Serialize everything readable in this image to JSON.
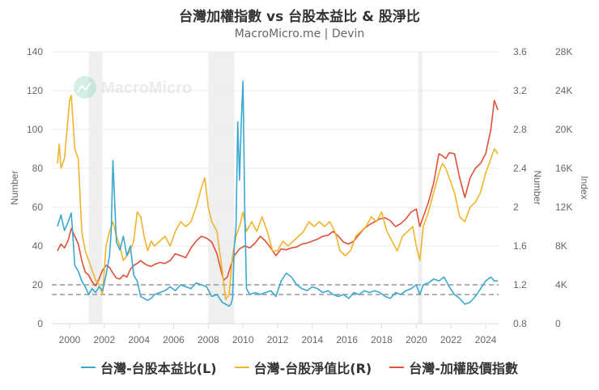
{
  "header": {
    "title": "台灣加權指數 vs 台股本益比 & 股淨比",
    "subtitle": "MacroMicro.me | Devin"
  },
  "watermark": {
    "text": "MacroMicro",
    "icon": "chart-logo-icon"
  },
  "legend": [
    {
      "label": "台灣-台股本益比(L)",
      "color": "#3BA8D0"
    },
    {
      "label": "台灣-台股淨值比(R)",
      "color": "#F0B42D"
    },
    {
      "label": "台灣-加權股價指數",
      "color": "#E0513A"
    }
  ],
  "chart_data": {
    "type": "line",
    "title": "台灣加權指數 vs 台股本益比 & 股淨比",
    "subtitle": "MacroMicro.me | Devin",
    "xlabel": "",
    "x_ticks": [
      "2000",
      "2002",
      "2004",
      "2006",
      "2008",
      "2010",
      "2012",
      "2014",
      "2016",
      "2018",
      "2020",
      "2022",
      "2024"
    ],
    "xlim": [
      1999.3,
      2025.0
    ],
    "axes": {
      "left": {
        "label": "Number",
        "ticks": [
          "0",
          "20",
          "40",
          "60",
          "80",
          "100",
          "120",
          "140"
        ],
        "ylim": [
          0,
          140
        ]
      },
      "right1": {
        "label": "Number",
        "ticks": [
          "0.8",
          "1.2",
          "1.6",
          "2",
          "2.4",
          "2.8",
          "3.2",
          "3.6"
        ],
        "ylim": [
          0.8,
          3.6
        ]
      },
      "right2": {
        "label": "Index",
        "ticks": [
          "0",
          "4K",
          "8K",
          "12K",
          "16K",
          "20K",
          "24K",
          "28K"
        ],
        "ylim": [
          0,
          28000
        ]
      }
    },
    "reference_lines": [
      {
        "axis": "left",
        "value": 20,
        "style": "dashed",
        "color": "#999999"
      },
      {
        "axis": "left",
        "value": 15,
        "style": "dashed",
        "color": "#999999"
      }
    ],
    "shaded_periods": [
      {
        "from": 2001.1,
        "to": 2001.9
      },
      {
        "from": 2008.0,
        "to": 2009.5
      },
      {
        "from": 2020.1,
        "to": 2020.35
      }
    ],
    "grid": true,
    "legend_position": "bottom",
    "series": [
      {
        "name": "台灣-台股本益比(L)",
        "axis": "left",
        "color": "#3BA8D0",
        "x": [
          1999.3,
          1999.5,
          1999.7,
          1999.9,
          2000.1,
          2000.3,
          2000.5,
          2000.7,
          2000.9,
          2001.1,
          2001.3,
          2001.5,
          2001.7,
          2001.9,
          2002.1,
          2002.3,
          2002.4,
          2002.5,
          2002.7,
          2002.9,
          2003.1,
          2003.3,
          2003.5,
          2003.7,
          2003.9,
          2004.1,
          2004.3,
          2004.5,
          2004.7,
          2004.9,
          2005.2,
          2005.5,
          2005.8,
          2006.1,
          2006.4,
          2006.7,
          2007.0,
          2007.3,
          2007.6,
          2007.9,
          2008.2,
          2008.5,
          2008.8,
          2009.0,
          2009.2,
          2009.3,
          2009.4,
          2009.5,
          2009.6,
          2009.7,
          2009.8,
          2009.9,
          2010.0,
          2010.1,
          2010.2,
          2010.4,
          2010.7,
          2011.0,
          2011.3,
          2011.6,
          2011.9,
          2012.2,
          2012.5,
          2012.8,
          2013.1,
          2013.4,
          2013.7,
          2014.0,
          2014.3,
          2014.6,
          2014.9,
          2015.2,
          2015.5,
          2015.8,
          2016.1,
          2016.4,
          2016.7,
          2017.0,
          2017.3,
          2017.6,
          2017.9,
          2018.2,
          2018.5,
          2018.8,
          2019.1,
          2019.4,
          2019.7,
          2020.0,
          2020.2,
          2020.4,
          2020.7,
          2021.0,
          2021.3,
          2021.6,
          2021.9,
          2022.2,
          2022.5,
          2022.8,
          2023.1,
          2023.4,
          2023.7,
          2024.0,
          2024.3,
          2024.5,
          2024.7
        ],
        "values": [
          50,
          56,
          48,
          52,
          57,
          30,
          27,
          22,
          19,
          15,
          18,
          16,
          19,
          17,
          25,
          35,
          48,
          84,
          42,
          38,
          45,
          35,
          40,
          25,
          22,
          14,
          13,
          12,
          13,
          15,
          16,
          17,
          19,
          17,
          20,
          19,
          18,
          21,
          20,
          19,
          14,
          15,
          11,
          10,
          9,
          10,
          13,
          40,
          50,
          104,
          74,
          103,
          125,
          60,
          18,
          15,
          16,
          15,
          16,
          17,
          14,
          22,
          26,
          24,
          20,
          18,
          17,
          19,
          18,
          16,
          17,
          15,
          14,
          15,
          13,
          16,
          15,
          17,
          16,
          17,
          16,
          14,
          13,
          16,
          15,
          17,
          18,
          20,
          15,
          20,
          21,
          23,
          22,
          24,
          19,
          15,
          13,
          10,
          11,
          14,
          18,
          22,
          24,
          22,
          22
        ]
      },
      {
        "name": "台灣-台股淨值比(R)",
        "axis": "right1",
        "color": "#F0B42D",
        "x": [
          1999.3,
          1999.4,
          1999.5,
          1999.7,
          1999.9,
          2000.0,
          2000.1,
          2000.3,
          2000.5,
          2000.7,
          2000.9,
          2001.1,
          2001.3,
          2001.5,
          2001.7,
          2001.9,
          2002.1,
          2002.3,
          2002.5,
          2002.7,
          2002.9,
          2003.1,
          2003.3,
          2003.5,
          2003.7,
          2003.9,
          2004.1,
          2004.3,
          2004.5,
          2004.7,
          2004.9,
          2005.2,
          2005.5,
          2005.8,
          2006.1,
          2006.4,
          2006.7,
          2007.0,
          2007.3,
          2007.6,
          2007.8,
          2008.0,
          2008.2,
          2008.5,
          2008.8,
          2008.9,
          2009.0,
          2009.2,
          2009.4,
          2009.6,
          2009.8,
          2010.0,
          2010.2,
          2010.5,
          2010.8,
          2011.1,
          2011.4,
          2011.7,
          2012.0,
          2012.3,
          2012.6,
          2012.9,
          2013.2,
          2013.5,
          2013.8,
          2014.1,
          2014.4,
          2014.7,
          2015.0,
          2015.3,
          2015.6,
          2015.9,
          2016.2,
          2016.5,
          2016.8,
          2017.1,
          2017.4,
          2017.7,
          2018.0,
          2018.3,
          2018.6,
          2018.9,
          2019.2,
          2019.5,
          2019.8,
          2020.0,
          2020.2,
          2020.4,
          2020.7,
          2021.0,
          2021.3,
          2021.5,
          2021.7,
          2021.9,
          2022.2,
          2022.5,
          2022.8,
          2023.1,
          2023.4,
          2023.7,
          2024.0,
          2024.3,
          2024.5,
          2024.7
        ],
        "values": [
          2.45,
          2.65,
          2.4,
          2.5,
          2.9,
          3.1,
          3.15,
          2.6,
          2.5,
          1.75,
          1.55,
          1.45,
          1.35,
          1.25,
          1.2,
          1.1,
          1.6,
          1.75,
          1.85,
          1.7,
          1.6,
          1.45,
          1.5,
          1.55,
          1.65,
          1.95,
          1.9,
          1.7,
          1.55,
          1.65,
          1.6,
          1.65,
          1.7,
          1.6,
          1.75,
          1.85,
          1.8,
          1.85,
          2.0,
          2.2,
          2.3,
          2.0,
          1.85,
          1.75,
          1.35,
          1.2,
          1.05,
          1.1,
          1.5,
          1.7,
          1.8,
          1.95,
          1.75,
          1.85,
          1.75,
          1.9,
          1.75,
          1.55,
          1.55,
          1.65,
          1.6,
          1.65,
          1.7,
          1.75,
          1.85,
          1.8,
          1.85,
          1.8,
          1.85,
          1.75,
          1.55,
          1.5,
          1.55,
          1.7,
          1.75,
          1.8,
          1.9,
          1.85,
          1.95,
          1.75,
          1.65,
          1.55,
          1.7,
          1.75,
          1.8,
          1.6,
          1.45,
          1.8,
          1.95,
          2.15,
          2.35,
          2.45,
          2.4,
          2.3,
          2.15,
          1.9,
          1.85,
          2.0,
          2.05,
          2.15,
          2.35,
          2.5,
          2.6,
          2.55
        ]
      },
      {
        "name": "台灣-加權股價指數",
        "axis": "right2",
        "color": "#E0513A",
        "x": [
          1999.3,
          1999.5,
          1999.7,
          1999.9,
          2000.1,
          2000.3,
          2000.5,
          2000.7,
          2000.9,
          2001.1,
          2001.3,
          2001.5,
          2001.7,
          2001.9,
          2002.1,
          2002.3,
          2002.5,
          2002.7,
          2002.9,
          2003.1,
          2003.3,
          2003.5,
          2003.7,
          2003.9,
          2004.1,
          2004.3,
          2004.5,
          2004.7,
          2004.9,
          2005.2,
          2005.5,
          2005.8,
          2006.1,
          2006.4,
          2006.7,
          2007.0,
          2007.3,
          2007.6,
          2007.9,
          2008.2,
          2008.5,
          2008.8,
          2008.9,
          2009.1,
          2009.3,
          2009.5,
          2009.8,
          2010.1,
          2010.4,
          2010.7,
          2011.0,
          2011.3,
          2011.6,
          2011.9,
          2012.2,
          2012.5,
          2012.8,
          2013.1,
          2013.4,
          2013.7,
          2014.0,
          2014.3,
          2014.6,
          2014.9,
          2015.2,
          2015.5,
          2015.8,
          2016.1,
          2016.4,
          2016.7,
          2017.0,
          2017.3,
          2017.6,
          2017.9,
          2018.2,
          2018.5,
          2018.8,
          2019.1,
          2019.4,
          2019.7,
          2020.0,
          2020.2,
          2020.4,
          2020.7,
          2021.0,
          2021.3,
          2021.5,
          2021.7,
          2021.9,
          2022.2,
          2022.5,
          2022.8,
          2023.1,
          2023.4,
          2023.7,
          2024.0,
          2024.3,
          2024.5,
          2024.7
        ],
        "values": [
          7500,
          8200,
          7800,
          8500,
          9800,
          9000,
          8200,
          6500,
          5300,
          5000,
          4300,
          3900,
          4600,
          5500,
          6000,
          5800,
          5200,
          4700,
          4600,
          5000,
          4800,
          5600,
          6000,
          6200,
          6500,
          6200,
          6000,
          5900,
          6100,
          6300,
          6200,
          6500,
          7200,
          7000,
          6800,
          7800,
          8500,
          9000,
          8800,
          8400,
          7200,
          5000,
          4500,
          4800,
          6000,
          7000,
          7700,
          8000,
          7800,
          8300,
          9000,
          8500,
          7800,
          7000,
          7700,
          7600,
          7800,
          7900,
          8200,
          8300,
          8500,
          8700,
          9000,
          9100,
          9500,
          9000,
          8400,
          8200,
          8500,
          9200,
          9800,
          10200,
          10500,
          10800,
          10900,
          10600,
          10000,
          10300,
          10800,
          11500,
          11800,
          10000,
          11000,
          12500,
          14500,
          17500,
          17300,
          17000,
          17600,
          17500,
          15000,
          13000,
          15000,
          16000,
          16500,
          17500,
          20000,
          23000,
          22000
        ]
      }
    ]
  }
}
